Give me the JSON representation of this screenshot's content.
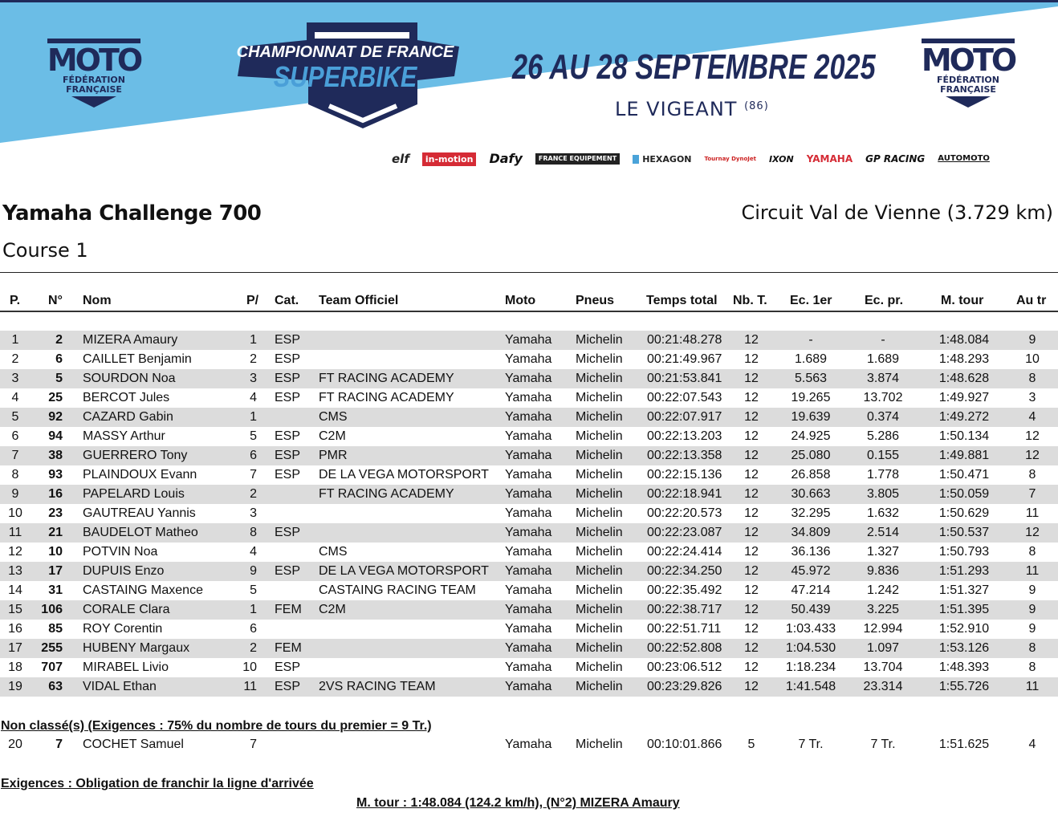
{
  "header": {
    "federation_logo": {
      "word": "MOTO",
      "sub1": "FÉDÉRATION",
      "sub2": "FRANÇAISE"
    },
    "championship": {
      "line1": "CHAMPIONNAT DE FRANCE",
      "line2": "SUPERBIKE"
    },
    "dates": "26 AU 28 SEPTEMBRE 2025",
    "venue": "LE VIGEANT",
    "venue_dept": "(86)",
    "sponsors": [
      "elf",
      "in-motion",
      "Dafy",
      "FRANCE EQUIPEMENT",
      "HEXAGON",
      "Tournay DynoJet",
      "IXON",
      "YAMAHA",
      "GP RACING",
      "AUTOMOTO"
    ],
    "colors": {
      "sky": "#6bbde6",
      "navy": "#1f2a5a",
      "accent": "#4a9fd8"
    }
  },
  "event": {
    "title": "Yamaha Challenge 700",
    "circuit": "Circuit Val de Vienne (3.729 km)",
    "session": "Course 1"
  },
  "table": {
    "columns": [
      "P.",
      "N°",
      "Nom",
      "P/",
      "Cat.",
      "Team Officiel",
      "Moto",
      "Pneus",
      "Temps total",
      "Nb. T.",
      "Ec. 1er",
      "Ec. pr.",
      "M. tour",
      "Au tr"
    ],
    "rows": [
      [
        "1",
        "2",
        "MIZERA Amaury",
        "1",
        "ESP",
        "",
        "Yamaha",
        "Michelin",
        "00:21:48.278",
        "12",
        "-",
        "-",
        "1:48.084",
        "9"
      ],
      [
        "2",
        "6",
        "CAILLET Benjamin",
        "2",
        "ESP",
        "",
        "Yamaha",
        "Michelin",
        "00:21:49.967",
        "12",
        "1.689",
        "1.689",
        "1:48.293",
        "10"
      ],
      [
        "3",
        "5",
        "SOURDON Noa",
        "3",
        "ESP",
        "FT RACING ACADEMY",
        "Yamaha",
        "Michelin",
        "00:21:53.841",
        "12",
        "5.563",
        "3.874",
        "1:48.628",
        "8"
      ],
      [
        "4",
        "25",
        "BERCOT Jules",
        "4",
        "ESP",
        "FT RACING ACADEMY",
        "Yamaha",
        "Michelin",
        "00:22:07.543",
        "12",
        "19.265",
        "13.702",
        "1:49.927",
        "3"
      ],
      [
        "5",
        "92",
        "CAZARD Gabin",
        "1",
        "",
        "CMS",
        "Yamaha",
        "Michelin",
        "00:22:07.917",
        "12",
        "19.639",
        "0.374",
        "1:49.272",
        "4"
      ],
      [
        "6",
        "94",
        "MASSY Arthur",
        "5",
        "ESP",
        "C2M",
        "Yamaha",
        "Michelin",
        "00:22:13.203",
        "12",
        "24.925",
        "5.286",
        "1:50.134",
        "12"
      ],
      [
        "7",
        "38",
        "GUERRERO Tony",
        "6",
        "ESP",
        "PMR",
        "Yamaha",
        "Michelin",
        "00:22:13.358",
        "12",
        "25.080",
        "0.155",
        "1:49.881",
        "12"
      ],
      [
        "8",
        "93",
        "PLAINDOUX Evann",
        "7",
        "ESP",
        "DE LA VEGA MOTORSPORT",
        "Yamaha",
        "Michelin",
        "00:22:15.136",
        "12",
        "26.858",
        "1.778",
        "1:50.471",
        "8"
      ],
      [
        "9",
        "16",
        "PAPELARD Louis",
        "2",
        "",
        "FT RACING ACADEMY",
        "Yamaha",
        "Michelin",
        "00:22:18.941",
        "12",
        "30.663",
        "3.805",
        "1:50.059",
        "7"
      ],
      [
        "10",
        "23",
        "GAUTREAU Yannis",
        "3",
        "",
        "",
        "Yamaha",
        "Michelin",
        "00:22:20.573",
        "12",
        "32.295",
        "1.632",
        "1:50.629",
        "11"
      ],
      [
        "11",
        "21",
        "BAUDELOT Matheo",
        "8",
        "ESP",
        "",
        "Yamaha",
        "Michelin",
        "00:22:23.087",
        "12",
        "34.809",
        "2.514",
        "1:50.537",
        "12"
      ],
      [
        "12",
        "10",
        "POTVIN Noa",
        "4",
        "",
        "CMS",
        "Yamaha",
        "Michelin",
        "00:22:24.414",
        "12",
        "36.136",
        "1.327",
        "1:50.793",
        "8"
      ],
      [
        "13",
        "17",
        "DUPUIS Enzo",
        "9",
        "ESP",
        "DE LA VEGA MOTORSPORT",
        "Yamaha",
        "Michelin",
        "00:22:34.250",
        "12",
        "45.972",
        "9.836",
        "1:51.293",
        "11"
      ],
      [
        "14",
        "31",
        "CASTAING Maxence",
        "5",
        "",
        "CASTAING RACING TEAM",
        "Yamaha",
        "Michelin",
        "00:22:35.492",
        "12",
        "47.214",
        "1.242",
        "1:51.327",
        "9"
      ],
      [
        "15",
        "106",
        "CORALE Clara",
        "1",
        "FEM",
        "C2M",
        "Yamaha",
        "Michelin",
        "00:22:38.717",
        "12",
        "50.439",
        "3.225",
        "1:51.395",
        "9"
      ],
      [
        "16",
        "85",
        "ROY Corentin",
        "6",
        "",
        "",
        "Yamaha",
        "Michelin",
        "00:22:51.711",
        "12",
        "1:03.433",
        "12.994",
        "1:52.910",
        "9"
      ],
      [
        "17",
        "255",
        "HUBENY Margaux",
        "2",
        "FEM",
        "",
        "Yamaha",
        "Michelin",
        "00:22:52.808",
        "12",
        "1:04.530",
        "1.097",
        "1:53.126",
        "8"
      ],
      [
        "18",
        "707",
        "MIRABEL Livio",
        "10",
        "ESP",
        "",
        "Yamaha",
        "Michelin",
        "00:23:06.512",
        "12",
        "1:18.234",
        "13.704",
        "1:48.393",
        "8"
      ],
      [
        "19",
        "63",
        "VIDAL Ethan",
        "11",
        "ESP",
        "2VS RACING TEAM",
        "Yamaha",
        "Michelin",
        "00:23:29.826",
        "12",
        "1:41.548",
        "23.314",
        "1:55.726",
        "11"
      ]
    ],
    "non_classified_title": "Non classé(s) (Exigences : 75% du nombre de tours du premier = 9 Tr.)",
    "non_classified_rows": [
      [
        "20",
        "7",
        "COCHET Samuel",
        "7",
        "",
        "",
        "Yamaha",
        "Michelin",
        "00:10:01.866",
        "5",
        "7 Tr.",
        "7 Tr.",
        "1:51.625",
        "4"
      ]
    ]
  },
  "footer": {
    "requirement": "Exigences : Obligation de franchir la ligne d'arrivée",
    "best_lap": "M. tour : 1:48.084 (124.2 km/h), (N°2) MIZERA Amaury"
  }
}
